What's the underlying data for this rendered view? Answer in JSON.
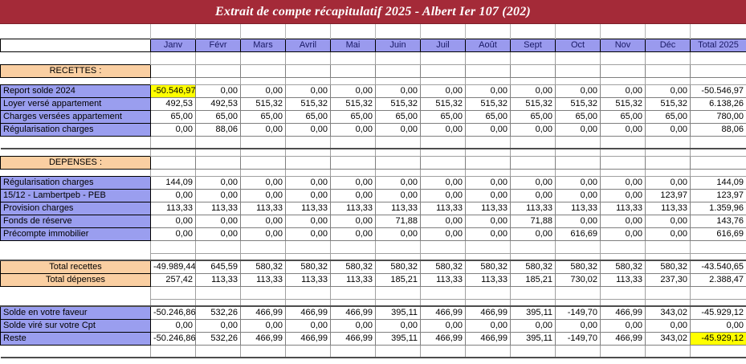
{
  "title": "Extrait de compte récapitulatif 2025 - Albert Ier 107 (202)",
  "colors": {
    "title_bg": "#A42A38",
    "header_bg": "#9A9AEE",
    "label_bg": "#9A9EEF",
    "section_bg": "#FACFA2",
    "highlight": "#FFFF00"
  },
  "columns": [
    "Janv",
    "Févr",
    "Mars",
    "Avril",
    "Mai",
    "Juin",
    "Juil",
    "Août",
    "Sept",
    "Oct",
    "Nov",
    "Déc"
  ],
  "total_label": "Total 2025",
  "rows": [
    {
      "kind": "spacer"
    },
    {
      "kind": "section",
      "label": "RECETTES :"
    },
    {
      "kind": "spacer_short"
    },
    {
      "kind": "data",
      "label": "Report solde 2024",
      "highlight_first": true,
      "values": [
        "-50.546,97",
        "0,00",
        "0,00",
        "0,00",
        "0,00",
        "0,00",
        "0,00",
        "0,00",
        "0,00",
        "0,00",
        "0,00",
        "0,00"
      ],
      "total": "-50.546,97"
    },
    {
      "kind": "data",
      "label": "Loyer versé appartement",
      "values": [
        "492,53",
        "492,53",
        "515,32",
        "515,32",
        "515,32",
        "515,32",
        "515,32",
        "515,32",
        "515,32",
        "515,32",
        "515,32",
        "515,32"
      ],
      "total": "6.138,26"
    },
    {
      "kind": "data",
      "label": "Charges versées appartement",
      "values": [
        "65,00",
        "65,00",
        "65,00",
        "65,00",
        "65,00",
        "65,00",
        "65,00",
        "65,00",
        "65,00",
        "65,00",
        "65,00",
        "65,00"
      ],
      "total": "780,00"
    },
    {
      "kind": "data",
      "label": "Régularisation charges",
      "values": [
        "0,00",
        "88,06",
        "0,00",
        "0,00",
        "0,00",
        "0,00",
        "0,00",
        "0,00",
        "0,00",
        "0,00",
        "0,00",
        "0,00"
      ],
      "total": "88,06"
    },
    {
      "kind": "spacer"
    },
    {
      "kind": "spacer_short",
      "rule_top": true
    },
    {
      "kind": "section",
      "label": "DEPENSES :"
    },
    {
      "kind": "spacer_short"
    },
    {
      "kind": "data",
      "label": "Régularisation charges",
      "values": [
        "144,09",
        "0,00",
        "0,00",
        "0,00",
        "0,00",
        "0,00",
        "0,00",
        "0,00",
        "0,00",
        "0,00",
        "0,00",
        "0,00"
      ],
      "total": "144,09"
    },
    {
      "kind": "data",
      "label": "15/12 - Lambertpeb - PEB",
      "values": [
        "0,00",
        "0,00",
        "0,00",
        "0,00",
        "0,00",
        "0,00",
        "0,00",
        "0,00",
        "0,00",
        "0,00",
        "0,00",
        "123,97"
      ],
      "total": "123,97"
    },
    {
      "kind": "data",
      "label": "Provision charges",
      "values": [
        "113,33",
        "113,33",
        "113,33",
        "113,33",
        "113,33",
        "113,33",
        "113,33",
        "113,33",
        "113,33",
        "113,33",
        "113,33",
        "113,33"
      ],
      "total": "1.359,96"
    },
    {
      "kind": "data",
      "label": "Fonds de réserve",
      "values": [
        "0,00",
        "0,00",
        "0,00",
        "0,00",
        "0,00",
        "71,88",
        "0,00",
        "0,00",
        "71,88",
        "0,00",
        "0,00",
        "0,00"
      ],
      "total": "143,76"
    },
    {
      "kind": "data",
      "label": "Précompte immobilier",
      "values": [
        "0,00",
        "0,00",
        "0,00",
        "0,00",
        "0,00",
        "0,00",
        "0,00",
        "0,00",
        "0,00",
        "616,69",
        "0,00",
        "0,00"
      ],
      "total": "616,69"
    },
    {
      "kind": "spacer"
    },
    {
      "kind": "spacer_short"
    },
    {
      "kind": "total",
      "label": "Total recettes",
      "rule_top": true,
      "values": [
        "-49.989,44",
        "645,59",
        "580,32",
        "580,32",
        "580,32",
        "580,32",
        "580,32",
        "580,32",
        "580,32",
        "580,32",
        "580,32",
        "580,32"
      ],
      "total": "-43.540,65"
    },
    {
      "kind": "total",
      "label": "Total dépenses",
      "values": [
        "257,42",
        "113,33",
        "113,33",
        "113,33",
        "113,33",
        "185,21",
        "113,33",
        "113,33",
        "185,21",
        "730,02",
        "113,33",
        "237,30"
      ],
      "total": "2.388,47"
    },
    {
      "kind": "spacer"
    },
    {
      "kind": "spacer_short"
    },
    {
      "kind": "data",
      "label": "Solde en votre faveur",
      "rule_top": true,
      "values": [
        "-50.246,86",
        "532,26",
        "466,99",
        "466,99",
        "466,99",
        "395,11",
        "466,99",
        "466,99",
        "395,11",
        "-149,70",
        "466,99",
        "343,02"
      ],
      "total": "-45.929,12"
    },
    {
      "kind": "data",
      "label": "Solde viré sur votre Cpt",
      "values": [
        "0,00",
        "0,00",
        "0,00",
        "0,00",
        "0,00",
        "0,00",
        "0,00",
        "0,00",
        "0,00",
        "0,00",
        "0,00",
        "0,00"
      ],
      "total": "0,00"
    },
    {
      "kind": "data",
      "label": "Reste",
      "highlight_total": true,
      "values": [
        "-50.246,86",
        "532,26",
        "466,99",
        "466,99",
        "466,99",
        "395,11",
        "466,99",
        "466,99",
        "395,11",
        "-149,70",
        "466,99",
        "343,02"
      ],
      "total": "-45.929,12"
    },
    {
      "kind": "spacer",
      "rule_bottom": true
    }
  ]
}
